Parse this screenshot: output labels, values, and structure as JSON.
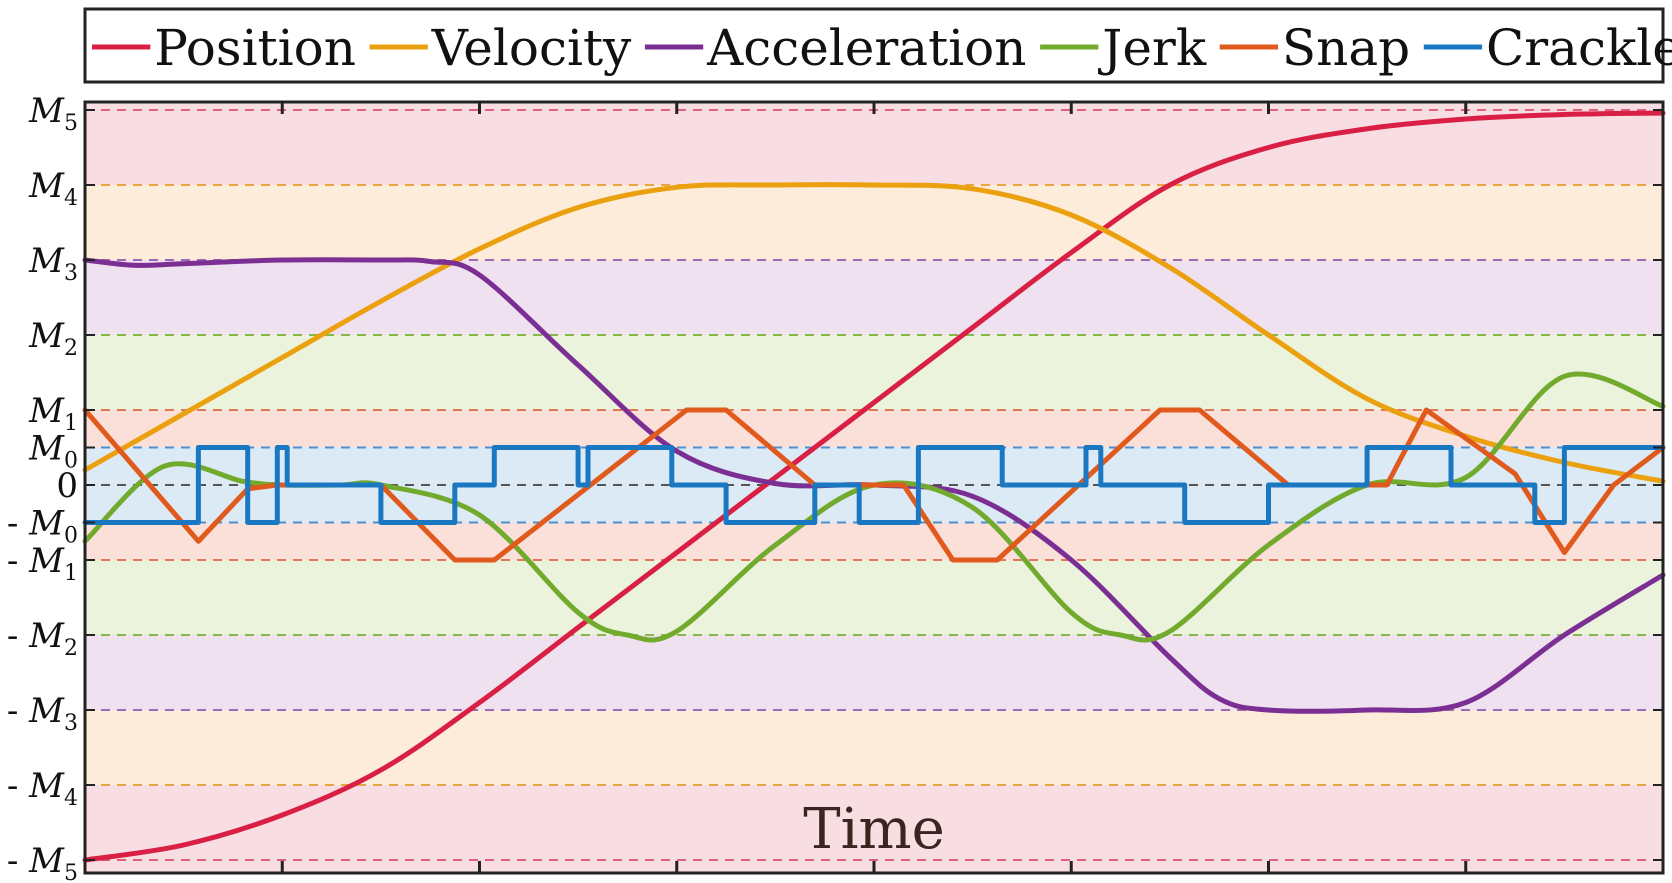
{
  "chart_data": {
    "type": "line",
    "xlabel": "Time",
    "ylabel": "",
    "x_range": [
      0,
      16
    ],
    "ylim": [
      -5,
      5
    ],
    "grid": "dashed horizontal lines at each level",
    "legend_placement": "top",
    "y_tick_labels": [
      {
        "value": 5,
        "prefix": "",
        "main": "M",
        "sub": "5"
      },
      {
        "value": 4,
        "prefix": "",
        "main": "M",
        "sub": "4"
      },
      {
        "value": 3,
        "prefix": "",
        "main": "M",
        "sub": "3"
      },
      {
        "value": 2,
        "prefix": "",
        "main": "M",
        "sub": "2"
      },
      {
        "value": 1,
        "prefix": "",
        "main": "M",
        "sub": "1"
      },
      {
        "value": 0.5,
        "prefix": "",
        "main": "M",
        "sub": "0"
      },
      {
        "value": 0,
        "prefix": "",
        "main": "0",
        "sub": ""
      },
      {
        "value": -0.5,
        "prefix": "- ",
        "main": "M",
        "sub": "0"
      },
      {
        "value": -1,
        "prefix": "- ",
        "main": "M",
        "sub": "1"
      },
      {
        "value": -2,
        "prefix": "- ",
        "main": "M",
        "sub": "2"
      },
      {
        "value": -3,
        "prefix": "- ",
        "main": "M",
        "sub": "3"
      },
      {
        "value": -4,
        "prefix": "- ",
        "main": "M",
        "sub": "4"
      },
      {
        "value": -5,
        "prefix": "- ",
        "main": "M",
        "sub": "5"
      }
    ],
    "bands": [
      {
        "from": 4,
        "to": 5,
        "color": "#f8dde2"
      },
      {
        "from": 3,
        "to": 4,
        "color": "#fcecd9"
      },
      {
        "from": 2,
        "to": 3,
        "color": "#efe1f0"
      },
      {
        "from": 1,
        "to": 2,
        "color": "#ebf3dc"
      },
      {
        "from": 0.5,
        "to": 1,
        "color": "#fae0d8"
      },
      {
        "from": -0.5,
        "to": 0.5,
        "color": "#dceaf5"
      },
      {
        "from": -1,
        "to": -0.5,
        "color": "#fae0d8"
      },
      {
        "from": -2,
        "to": -1,
        "color": "#ebf3dc"
      },
      {
        "from": -3,
        "to": -2,
        "color": "#efe1f0"
      },
      {
        "from": -4,
        "to": -3,
        "color": "#fcecd9"
      },
      {
        "from": -5,
        "to": -4,
        "color": "#f8dde2"
      }
    ],
    "gridlines": [
      {
        "y": 5,
        "color": "#e0607a"
      },
      {
        "y": 4,
        "color": "#e8a540"
      },
      {
        "y": 3,
        "color": "#a068b0"
      },
      {
        "y": 2,
        "color": "#88b848"
      },
      {
        "y": 1,
        "color": "#e07858"
      },
      {
        "y": 0.5,
        "color": "#4a90d0"
      },
      {
        "y": 0,
        "color": "#555555"
      },
      {
        "y": -0.5,
        "color": "#4a90d0"
      },
      {
        "y": -1,
        "color": "#e07858"
      },
      {
        "y": -2,
        "color": "#88b848"
      },
      {
        "y": -3,
        "color": "#a068b0"
      },
      {
        "y": -4,
        "color": "#e8a540"
      },
      {
        "y": -5,
        "color": "#e0607a"
      }
    ],
    "series": [
      {
        "name": "Position",
        "color": "#d91f43",
        "x": [
          0,
          1,
          2,
          3,
          4,
          5,
          6,
          7,
          8,
          9,
          10,
          11,
          12,
          13,
          14,
          15,
          16
        ],
        "y": [
          -5,
          -4.8,
          -4.4,
          -3.8,
          -2.9,
          -1.9,
          -0.9,
          0.1,
          1.1,
          2.1,
          3.1,
          4.0,
          4.5,
          4.75,
          4.88,
          4.94,
          4.96
        ]
      },
      {
        "name": "Velocity",
        "color": "#eba00f",
        "x": [
          0,
          1,
          2,
          3,
          4,
          5,
          6,
          7,
          8,
          9,
          10,
          11,
          12,
          13,
          14,
          15,
          16
        ],
        "y": [
          0.2,
          0.95,
          1.7,
          2.45,
          3.15,
          3.7,
          3.97,
          4.0,
          4.0,
          3.95,
          3.6,
          2.9,
          2.0,
          1.15,
          0.65,
          0.3,
          0.05
        ]
      },
      {
        "name": "Acceleration",
        "color": "#7b2f93",
        "x": [
          0,
          0.5,
          1,
          2,
          3,
          3.5,
          4,
          5,
          6,
          7,
          8,
          9,
          10,
          11,
          11.5,
          12,
          13,
          14,
          15,
          16
        ],
        "y": [
          3.0,
          2.93,
          2.95,
          3.0,
          3.0,
          2.98,
          2.8,
          1.6,
          0.45,
          0.02,
          0.0,
          -0.15,
          -1.0,
          -2.3,
          -2.85,
          -3.0,
          -3.0,
          -2.9,
          -2.0,
          -1.2
        ]
      },
      {
        "name": "Jerk",
        "color": "#72aa2e",
        "x": [
          0,
          0.8,
          1.6,
          2.0,
          2.6,
          3.0,
          4.0,
          5.0,
          5.5,
          6.0,
          7.0,
          8.0,
          9.0,
          10.0,
          10.5,
          11.0,
          12.0,
          13.0,
          14.0,
          15.0,
          16.0
        ],
        "y": [
          -0.75,
          0.25,
          0.05,
          0.0,
          0.0,
          0.0,
          -0.4,
          -1.7,
          -2.0,
          -1.95,
          -0.8,
          0.0,
          -0.3,
          -1.7,
          -2.0,
          -1.95,
          -0.8,
          0.0,
          0.1,
          1.45,
          1.05
        ]
      },
      {
        "name": "Snap",
        "color": "#e05a1e",
        "x": [
          0,
          1.15,
          1.65,
          1.95,
          2.1,
          2.3,
          3.0,
          3.75,
          4.15,
          6.1,
          6.5,
          7.4,
          7.5,
          8.3,
          8.8,
          9.25,
          10.9,
          11.3,
          12.2,
          13.2,
          13.6,
          14.5,
          15.0,
          15.5,
          16.0
        ],
        "y": [
          1.0,
          -0.75,
          -0.05,
          0.0,
          0.0,
          0.0,
          0.0,
          -1.0,
          -1.0,
          1.0,
          1.0,
          0.0,
          0.0,
          0.0,
          -1.0,
          -1.0,
          1.0,
          1.0,
          0.0,
          0.0,
          1.0,
          0.15,
          -0.9,
          0.0,
          0.5
        ]
      },
      {
        "name": "Crackle",
        "color": "#1a78c2",
        "x": [
          0,
          1.15,
          1.15,
          1.65,
          1.65,
          1.95,
          1.95,
          2.05,
          2.05,
          3.0,
          3.0,
          3.75,
          3.75,
          4.15,
          4.15,
          5.0,
          5.0,
          5.1,
          5.1,
          5.95,
          5.95,
          6.5,
          6.5,
          7.4,
          7.4,
          7.85,
          7.85,
          8.45,
          8.45,
          9.3,
          9.3,
          10.15,
          10.15,
          10.3,
          10.3,
          11.15,
          11.15,
          12.0,
          12.0,
          13.0,
          13.0,
          13.85,
          13.85,
          14.7,
          14.7,
          15.0,
          15.0,
          16.0
        ],
        "y": [
          -0.5,
          -0.5,
          0.5,
          0.5,
          -0.5,
          -0.5,
          0.5,
          0.5,
          0.0,
          0.0,
          -0.5,
          -0.5,
          0.0,
          0.0,
          0.5,
          0.5,
          0.0,
          0.0,
          0.5,
          0.5,
          0.0,
          0.0,
          -0.5,
          -0.5,
          0.0,
          0.0,
          -0.5,
          -0.5,
          0.5,
          0.5,
          0.0,
          0.0,
          0.5,
          0.5,
          0.0,
          0.0,
          -0.5,
          -0.5,
          0.0,
          0.0,
          0.5,
          0.5,
          0.0,
          0.0,
          -0.5,
          -0.5,
          0.5,
          0.5
        ]
      }
    ]
  }
}
